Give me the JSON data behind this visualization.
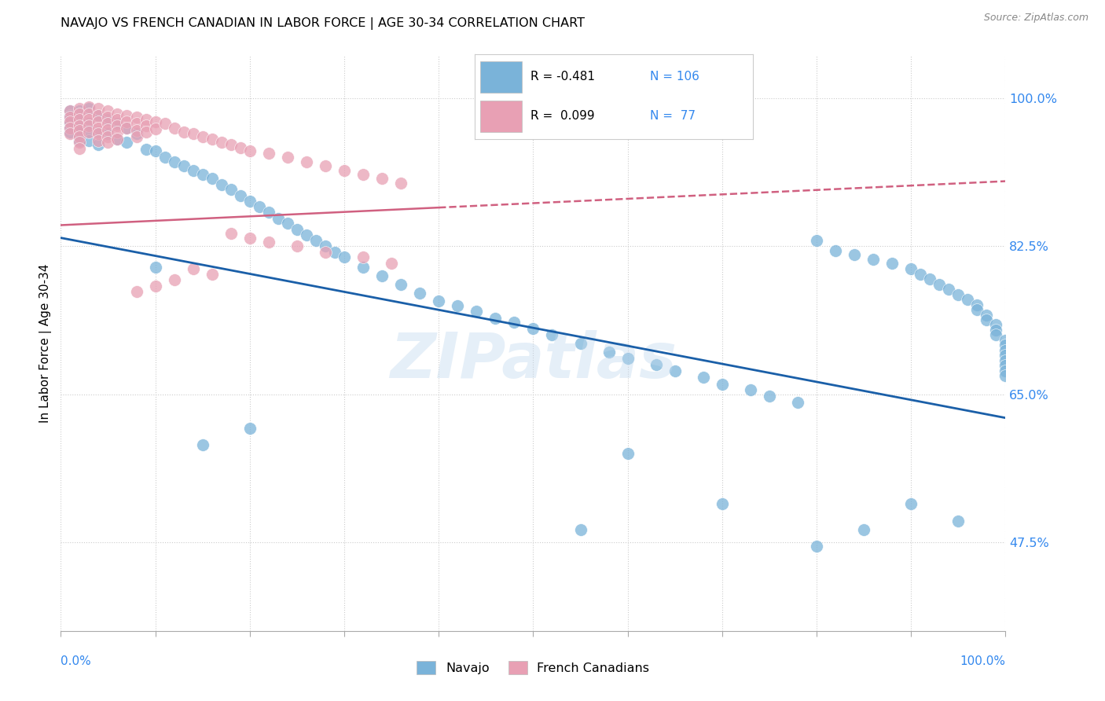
{
  "title": "NAVAJO VS FRENCH CANADIAN IN LABOR FORCE | AGE 30-34 CORRELATION CHART",
  "source": "Source: ZipAtlas.com",
  "ylabel": "In Labor Force | Age 30-34",
  "legend_label1": "Navajo",
  "legend_label2": "French Canadians",
  "R1": -0.481,
  "N1": 106,
  "R2": 0.099,
  "N2": 77,
  "color_navajo": "#7ab3d9",
  "color_french": "#e8a0b4",
  "color_navajo_line": "#1a5fa8",
  "color_french_line": "#d06080",
  "watermark": "ZIPatlas",
  "ytick_labels": [
    "47.5%",
    "65.0%",
    "82.5%",
    "100.0%"
  ],
  "ytick_values": [
    0.475,
    0.65,
    0.825,
    1.0
  ],
  "xmin": 0.0,
  "xmax": 1.0,
  "ymin": 0.37,
  "ymax": 1.05,
  "navajo_x": [
    0.01,
    0.01,
    0.01,
    0.01,
    0.01,
    0.01,
    0.02,
    0.02,
    0.02,
    0.02,
    0.02,
    0.02,
    0.03,
    0.03,
    0.03,
    0.03,
    0.04,
    0.04,
    0.04,
    0.05,
    0.05,
    0.06,
    0.06,
    0.07,
    0.07,
    0.08,
    0.09,
    0.1,
    0.11,
    0.12,
    0.13,
    0.14,
    0.15,
    0.16,
    0.17,
    0.18,
    0.19,
    0.2,
    0.21,
    0.22,
    0.23,
    0.24,
    0.25,
    0.26,
    0.27,
    0.28,
    0.29,
    0.3,
    0.32,
    0.34,
    0.36,
    0.38,
    0.4,
    0.42,
    0.44,
    0.46,
    0.48,
    0.5,
    0.52,
    0.55,
    0.58,
    0.6,
    0.63,
    0.65,
    0.68,
    0.7,
    0.73,
    0.75,
    0.78,
    0.8,
    0.82,
    0.84,
    0.86,
    0.88,
    0.9,
    0.91,
    0.92,
    0.93,
    0.94,
    0.95,
    0.96,
    0.97,
    0.97,
    0.98,
    0.98,
    0.99,
    0.99,
    0.99,
    1.0,
    1.0,
    1.0,
    1.0,
    1.0,
    1.0,
    1.0,
    1.0,
    0.1,
    0.55,
    0.6,
    0.7,
    0.8,
    0.85,
    0.9,
    0.95,
    0.15,
    0.2
  ],
  "navajo_y": [
    0.985,
    0.98,
    0.975,
    0.97,
    0.965,
    0.96,
    0.985,
    0.975,
    0.965,
    0.96,
    0.955,
    0.95,
    0.988,
    0.97,
    0.962,
    0.95,
    0.98,
    0.96,
    0.945,
    0.975,
    0.958,
    0.97,
    0.952,
    0.965,
    0.948,
    0.958,
    0.94,
    0.938,
    0.93,
    0.925,
    0.92,
    0.915,
    0.91,
    0.905,
    0.898,
    0.892,
    0.885,
    0.878,
    0.872,
    0.865,
    0.858,
    0.852,
    0.845,
    0.838,
    0.832,
    0.825,
    0.818,
    0.812,
    0.8,
    0.79,
    0.78,
    0.77,
    0.76,
    0.755,
    0.748,
    0.74,
    0.735,
    0.728,
    0.72,
    0.71,
    0.7,
    0.692,
    0.685,
    0.678,
    0.67,
    0.662,
    0.655,
    0.648,
    0.64,
    0.832,
    0.82,
    0.815,
    0.81,
    0.805,
    0.798,
    0.792,
    0.786,
    0.78,
    0.774,
    0.768,
    0.762,
    0.756,
    0.75,
    0.744,
    0.738,
    0.732,
    0.726,
    0.72,
    0.714,
    0.708,
    0.702,
    0.696,
    0.69,
    0.684,
    0.678,
    0.672,
    0.8,
    0.49,
    0.58,
    0.52,
    0.47,
    0.49,
    0.52,
    0.5,
    0.59,
    0.61
  ],
  "french_x": [
    0.01,
    0.01,
    0.01,
    0.01,
    0.01,
    0.02,
    0.02,
    0.02,
    0.02,
    0.02,
    0.02,
    0.02,
    0.02,
    0.03,
    0.03,
    0.03,
    0.03,
    0.03,
    0.04,
    0.04,
    0.04,
    0.04,
    0.04,
    0.04,
    0.05,
    0.05,
    0.05,
    0.05,
    0.05,
    0.05,
    0.06,
    0.06,
    0.06,
    0.06,
    0.06,
    0.07,
    0.07,
    0.07,
    0.08,
    0.08,
    0.08,
    0.08,
    0.09,
    0.09,
    0.09,
    0.1,
    0.1,
    0.11,
    0.12,
    0.13,
    0.14,
    0.15,
    0.16,
    0.17,
    0.18,
    0.19,
    0.2,
    0.22,
    0.24,
    0.26,
    0.28,
    0.3,
    0.32,
    0.34,
    0.36,
    0.18,
    0.2,
    0.22,
    0.25,
    0.28,
    0.32,
    0.35,
    0.14,
    0.16,
    0.12,
    0.1,
    0.08
  ],
  "french_y": [
    0.985,
    0.978,
    0.972,
    0.965,
    0.958,
    0.988,
    0.982,
    0.975,
    0.968,
    0.962,
    0.955,
    0.948,
    0.941,
    0.99,
    0.982,
    0.975,
    0.968,
    0.96,
    0.988,
    0.98,
    0.972,
    0.965,
    0.958,
    0.95,
    0.985,
    0.978,
    0.97,
    0.963,
    0.955,
    0.948,
    0.982,
    0.975,
    0.968,
    0.96,
    0.952,
    0.98,
    0.972,
    0.965,
    0.978,
    0.97,
    0.962,
    0.955,
    0.975,
    0.968,
    0.96,
    0.972,
    0.964,
    0.97,
    0.965,
    0.96,
    0.958,
    0.955,
    0.952,
    0.948,
    0.945,
    0.942,
    0.938,
    0.935,
    0.93,
    0.925,
    0.92,
    0.915,
    0.91,
    0.905,
    0.9,
    0.84,
    0.835,
    0.83,
    0.825,
    0.818,
    0.812,
    0.805,
    0.798,
    0.792,
    0.785,
    0.778,
    0.771
  ]
}
